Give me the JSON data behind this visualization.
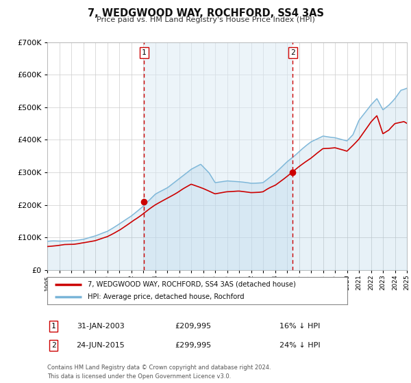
{
  "title": "7, WEDGWOOD WAY, ROCHFORD, SS4 3AS",
  "subtitle": "Price paid vs. HM Land Registry's House Price Index (HPI)",
  "legend_line1": "7, WEDGWOOD WAY, ROCHFORD, SS4 3AS (detached house)",
  "legend_line2": "HPI: Average price, detached house, Rochford",
  "sale1_label": "1",
  "sale1_date": "31-JAN-2003",
  "sale1_price": "£209,995",
  "sale1_hpi": "16% ↓ HPI",
  "sale1_year": 2003.08,
  "sale1_value": 209995,
  "sale2_label": "2",
  "sale2_date": "24-JUN-2015",
  "sale2_price": "£299,995",
  "sale2_hpi": "24% ↓ HPI",
  "sale2_year": 2015.48,
  "sale2_value": 299995,
  "hpi_color": "#7ab5d8",
  "hpi_fill_color": "#daeaf5",
  "price_color": "#cc0000",
  "dot_color": "#cc0000",
  "vline_color": "#cc0000",
  "bg_chart_color": "#ffffff",
  "grid_color": "#cccccc",
  "footer_text": "Contains HM Land Registry data © Crown copyright and database right 2024.\nThis data is licensed under the Open Government Licence v3.0.",
  "ylim": [
    0,
    700000
  ],
  "xlim_start": 1995,
  "xlim_end": 2025
}
